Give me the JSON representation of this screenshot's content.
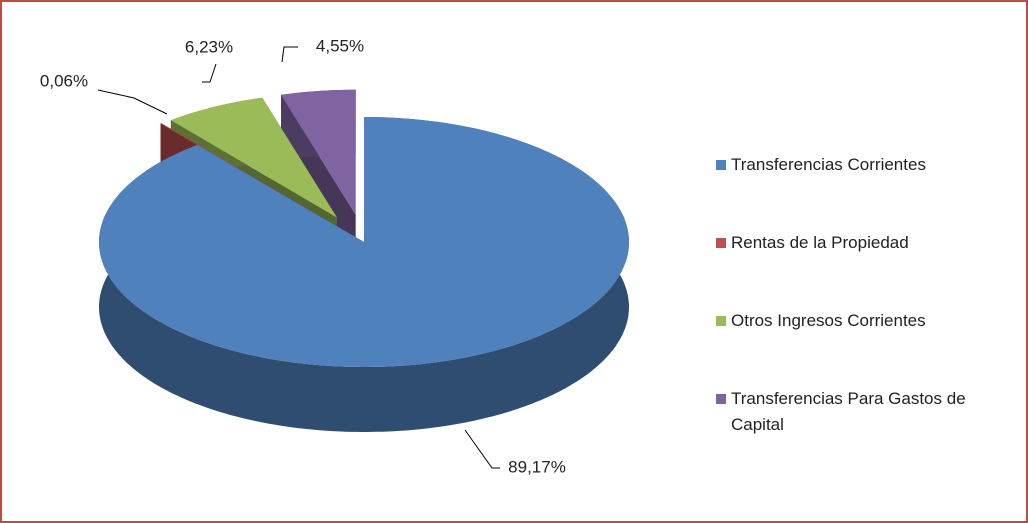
{
  "chart_data": {
    "type": "pie3d",
    "categories": [
      "Transferencias Corrientes",
      "Rentas de la Propiedad",
      "Otros Ingresos Corrientes",
      "Transferencias Para Gastos de Capital"
    ],
    "values": [
      89.17,
      0.06,
      6.23,
      4.55
    ],
    "value_labels": [
      "89,17%",
      "0,06%",
      "6,23%",
      "4,55%"
    ],
    "colors": [
      "#4f81bd",
      "#c0504d",
      "#9bbb59",
      "#8064a2"
    ],
    "legend": "right"
  }
}
